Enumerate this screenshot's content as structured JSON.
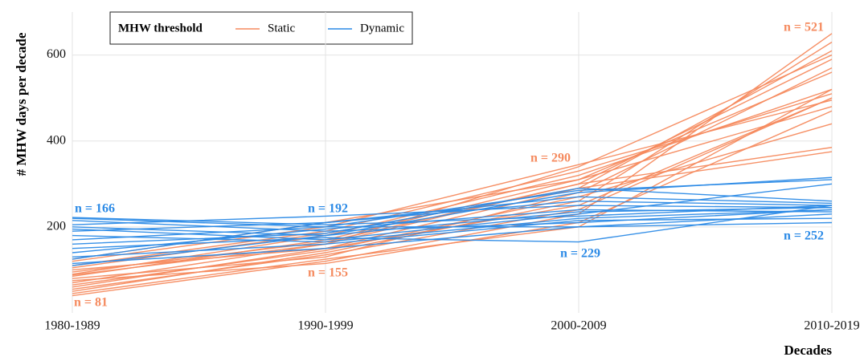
{
  "chart_data": {
    "type": "line",
    "y_label": "# MHW days per decade",
    "x_label": "Decades",
    "legend_title": "MHW threshold",
    "legend": "top-left",
    "grid": true,
    "categories": [
      "1980-1989",
      "1990-1999",
      "2000-2009",
      "2010-2019"
    ],
    "ylim": [
      0,
      700
    ],
    "yticks": [
      200,
      400,
      600
    ],
    "groups": [
      {
        "name": "Static",
        "color": "#f58a5e",
        "lines": [
          [
            40,
            120,
            230,
            650
          ],
          [
            50,
            140,
            260,
            630
          ],
          [
            60,
            150,
            290,
            610
          ],
          [
            70,
            160,
            300,
            590
          ],
          [
            80,
            130,
            280,
            570
          ],
          [
            85,
            170,
            310,
            560
          ],
          [
            90,
            180,
            320,
            520
          ],
          [
            100,
            150,
            250,
            500
          ],
          [
            110,
            190,
            330,
            510
          ],
          [
            120,
            200,
            345,
            495
          ],
          [
            75,
            115,
            210,
            470
          ],
          [
            65,
            145,
            270,
            440
          ],
          [
            95,
            165,
            300,
            385
          ],
          [
            105,
            185,
            290,
            375
          ],
          [
            55,
            135,
            240,
            500
          ],
          [
            125,
            210,
            310,
            480
          ],
          [
            45,
            125,
            200,
            520
          ],
          [
            88,
            160,
            340,
            600
          ]
        ]
      },
      {
        "name": "Dynamic",
        "color": "#2b8ae6",
        "lines": [
          [
            222,
            205,
            225,
            250
          ],
          [
            215,
            190,
            210,
            240
          ],
          [
            205,
            225,
            250,
            245
          ],
          [
            200,
            180,
            280,
            315
          ],
          [
            195,
            170,
            230,
            300
          ],
          [
            190,
            210,
            260,
            250
          ],
          [
            180,
            165,
            220,
            240
          ],
          [
            170,
            200,
            200,
            230
          ],
          [
            160,
            185,
            290,
            260
          ],
          [
            150,
            175,
            165,
            250
          ],
          [
            140,
            195,
            240,
            235
          ],
          [
            130,
            160,
            215,
            220
          ],
          [
            125,
            210,
            270,
            255
          ],
          [
            115,
            150,
            200,
            210
          ],
          [
            110,
            180,
            235,
            245
          ],
          [
            220,
            200,
            285,
            310
          ]
        ]
      }
    ],
    "annotations": [
      {
        "text": "n = 166",
        "color": "#2b8ae6"
      },
      {
        "text": "n = 81",
        "color": "#f58a5e"
      },
      {
        "text": "n = 192",
        "color": "#2b8ae6"
      },
      {
        "text": "n = 155",
        "color": "#f58a5e"
      },
      {
        "text": "n = 290",
        "color": "#f58a5e"
      },
      {
        "text": "n = 229",
        "color": "#2b8ae6"
      },
      {
        "text": "n = 521",
        "color": "#f58a5e"
      },
      {
        "text": "n = 252",
        "color": "#2b8ae6"
      }
    ]
  }
}
